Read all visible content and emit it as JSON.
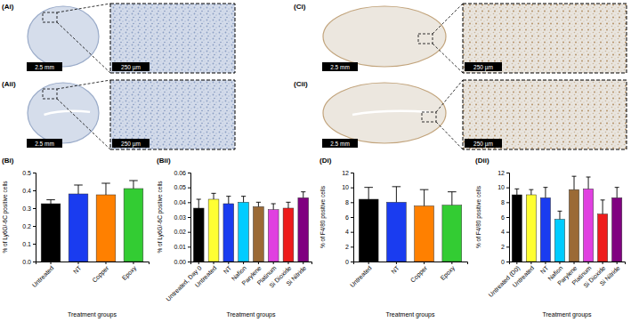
{
  "images": [
    {
      "label": "(Ai)",
      "scale_bar": "2.5 mm",
      "inset_scale_bar": "250 µm"
    },
    {
      "label": "(Aii)",
      "scale_bar": "2.5 mm",
      "inset_scale_bar": "250 µm"
    },
    {
      "label": "(Ci)",
      "scale_bar": "2.5 mm",
      "inset_scale_bar": "250 µm"
    },
    {
      "label": "(Cii)",
      "scale_bar": "2.5 mm",
      "inset_scale_bar": "250 µm"
    }
  ],
  "chart_data": [
    {
      "type": "bar",
      "title": "(Bi)",
      "x_label": "Treatment groups",
      "y_label": "% of Ly6G/-6C positive cells",
      "categories": [
        "Untreated",
        "NT",
        "Copper",
        "Epoxy"
      ],
      "values": [
        0.325,
        0.38,
        0.375,
        0.41
      ],
      "errors": [
        0.022,
        0.05,
        0.065,
        0.045
      ],
      "colors": [
        "#000000",
        "#1a3cf0",
        "#ff8000",
        "#33cc33"
      ],
      "ylim": [
        0,
        0.5
      ],
      "yticks": [
        {
          "value": 0,
          "label": "0.0"
        },
        0.1,
        0.2,
        0.3,
        0.4,
        0.5
      ]
    },
    {
      "type": "bar",
      "title": "(Bii)",
      "x_label": "Treatment groups",
      "y_label": "% of Ly6G/-6C positive cells",
      "categories": [
        "Untreated, Day 0",
        "Untreated",
        "NT",
        "Nafion",
        "Parylene",
        "Platinum",
        "Si Dioxide",
        "Si Nitride"
      ],
      "values": [
        0.036,
        0.042,
        0.039,
        0.04,
        0.037,
        0.035,
        0.036,
        0.043
      ],
      "errors": [
        0.006,
        0.004,
        0.005,
        0.004,
        0.003,
        0.004,
        0.004,
        0.004
      ],
      "colors": [
        "#000000",
        "#ffff33",
        "#1a3cf0",
        "#00ccff",
        "#9b6a36",
        "#e040e0",
        "#ee1c1c",
        "#800080"
      ],
      "ylim": [
        0,
        0.06
      ],
      "yticks": [
        {
          "value": 0,
          "label": "0.00"
        },
        {
          "value": 0.01,
          "label": "0.01"
        },
        {
          "value": 0.02,
          "label": "0.02"
        },
        {
          "value": 0.03,
          "label": "0.03"
        },
        {
          "value": 0.04,
          "label": "0.04"
        },
        {
          "value": 0.05,
          "label": "0.05"
        },
        {
          "value": 0.06,
          "label": "0.06"
        }
      ]
    },
    {
      "type": "bar",
      "title": "(Di)",
      "x_label": "Treatment groups",
      "y_label": "% of F4/80 positive cells",
      "categories": [
        "Untreated",
        "NT",
        "Copper",
        "Epoxy"
      ],
      "values": [
        8.4,
        8.0,
        7.5,
        7.6
      ],
      "errors": [
        1.6,
        2.1,
        2.2,
        1.8
      ],
      "colors": [
        "#000000",
        "#1a3cf0",
        "#ff8000",
        "#33cc33"
      ],
      "ylim": [
        0,
        12
      ],
      "yticks": [
        0,
        2,
        4,
        6,
        8,
        10,
        12
      ]
    },
    {
      "type": "bar",
      "title": "(Dii)",
      "x_label": "Treatment groups",
      "y_label": "% of F4/80 positive cells",
      "categories": [
        "Untreated (D0)",
        "Untreated",
        "NT",
        "Nafion",
        "Parylene",
        "Platinum",
        "Si Dioxide",
        "Si Nitride"
      ],
      "values": [
        9.0,
        9.0,
        8.6,
        5.7,
        9.7,
        9.8,
        6.4,
        8.6
      ],
      "errors": [
        0.8,
        0.7,
        1.4,
        1.1,
        1.8,
        1.6,
        1.9,
        1.4
      ],
      "colors": [
        "#000000",
        "#ffff33",
        "#1a3cf0",
        "#00ccff",
        "#9b6a36",
        "#e040e0",
        "#ee1c1c",
        "#800080"
      ],
      "ylim": [
        0,
        12
      ],
      "yticks": [
        0,
        2,
        4,
        6,
        8,
        10,
        12
      ]
    }
  ]
}
